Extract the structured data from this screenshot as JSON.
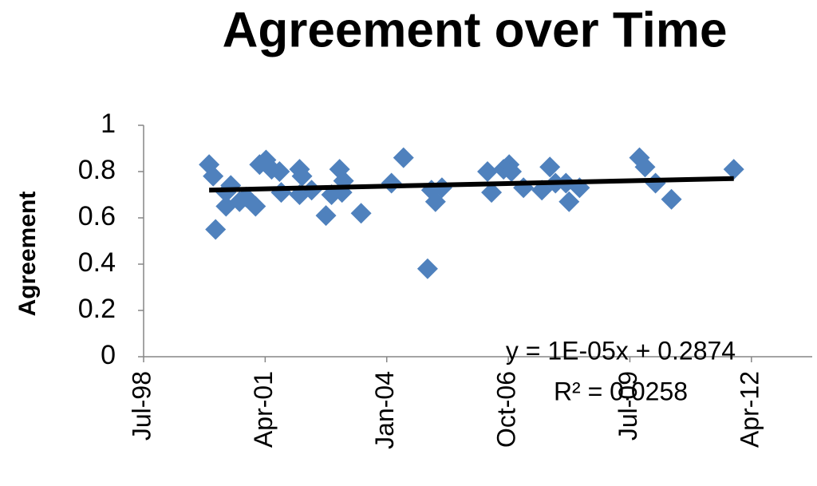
{
  "chart_data": {
    "type": "scatter",
    "title": "Agreement over Time",
    "y_label": "Agreement",
    "color": "#4f81bd",
    "x": [
      36539,
      36572,
      36592,
      36678,
      36717,
      36678,
      36789,
      36842,
      36921,
      36954,
      37007,
      37053,
      37118,
      37132,
      37283,
      37303,
      37283,
      37382,
      37500,
      37546,
      37612,
      37645,
      37632,
      37789,
      38039,
      38138,
      38336,
      38401,
      38368,
      38454,
      38829,
      38862,
      38961,
      39007,
      39026,
      39125,
      39276,
      39342,
      39388,
      39474,
      39500,
      39586,
      40079,
      40125,
      40211,
      40342,
      40855
    ],
    "values": [
      0.83,
      0.78,
      0.55,
      0.71,
      0.74,
      0.65,
      0.67,
      0.69,
      0.65,
      0.83,
      0.85,
      0.81,
      0.8,
      0.71,
      0.81,
      0.78,
      0.7,
      0.72,
      0.61,
      0.7,
      0.81,
      0.76,
      0.71,
      0.62,
      0.75,
      0.86,
      0.38,
      0.67,
      0.72,
      0.73,
      0.8,
      0.71,
      0.81,
      0.83,
      0.8,
      0.73,
      0.72,
      0.82,
      0.75,
      0.75,
      0.67,
      0.73,
      0.86,
      0.82,
      0.75,
      0.68,
      0.81
    ],
    "trendline": {
      "color": "#000000",
      "x": [
        36539,
        40855
      ],
      "values": [
        0.72,
        0.77
      ],
      "equation": "y = 1E-05x + 0.2874",
      "r_squared": "R² = 0.0258"
    },
    "xlim": [
      36000,
      41500
    ],
    "xticks": [
      {
        "value": 36000,
        "label": "Jul-98"
      },
      {
        "value": 37000,
        "label": "Apr-01"
      },
      {
        "value": 38000,
        "label": "Jan-04"
      },
      {
        "value": 39000,
        "label": "Oct-06"
      },
      {
        "value": 40000,
        "label": "Jul-09"
      },
      {
        "value": 41000,
        "label": "Apr-12"
      }
    ],
    "ylim": [
      0,
      1
    ],
    "yticks": [
      0,
      0.2,
      0.4,
      0.6,
      0.8,
      1
    ],
    "grid": false
  }
}
